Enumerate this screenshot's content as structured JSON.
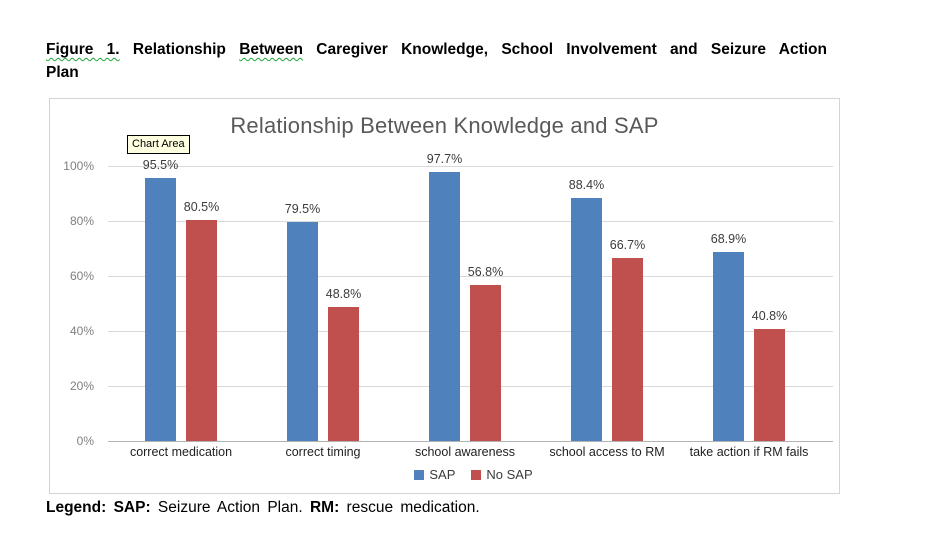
{
  "document": {
    "figure_caption": {
      "seg1": "Figure 1.",
      "seg2": " Relationship ",
      "seg3": "Between",
      "seg4": " Caregiver Knowledge, School Involvement and Seizure Action",
      "seg5": "Plan"
    },
    "legend_note": {
      "bold1": "Legend:",
      "bold2": " SAP:",
      "text1": " Seizure Action Plan. ",
      "bold3": "RM:",
      "text2": " rescue medication."
    }
  },
  "chart": {
    "tooltip_label": "Chart Area"
  },
  "chart_data": {
    "type": "bar",
    "title": "Relationship Between Knowledge and SAP",
    "categories": [
      "correct medication",
      "correct timing",
      "school awareness",
      "school access to RM",
      "take action if RM fails"
    ],
    "series": [
      {
        "name": "SAP",
        "color": "#4F81BD",
        "values": [
          95.5,
          79.5,
          97.7,
          88.4,
          68.9
        ],
        "labels": [
          "95.5%",
          "79.5%",
          "97.7%",
          "88.4%",
          "68.9%"
        ]
      },
      {
        "name": "No SAP",
        "color": "#C0504D",
        "values": [
          80.5,
          48.8,
          56.8,
          66.7,
          40.8
        ],
        "labels": [
          "80.5%",
          "48.8%",
          "56.8%",
          "66.7%",
          "40.8%"
        ]
      }
    ],
    "ytick_labels": [
      "0%",
      "20%",
      "40%",
      "60%",
      "80%",
      "100%"
    ],
    "ylim": [
      0,
      100
    ],
    "grid": true,
    "legend_position": "bottom"
  }
}
